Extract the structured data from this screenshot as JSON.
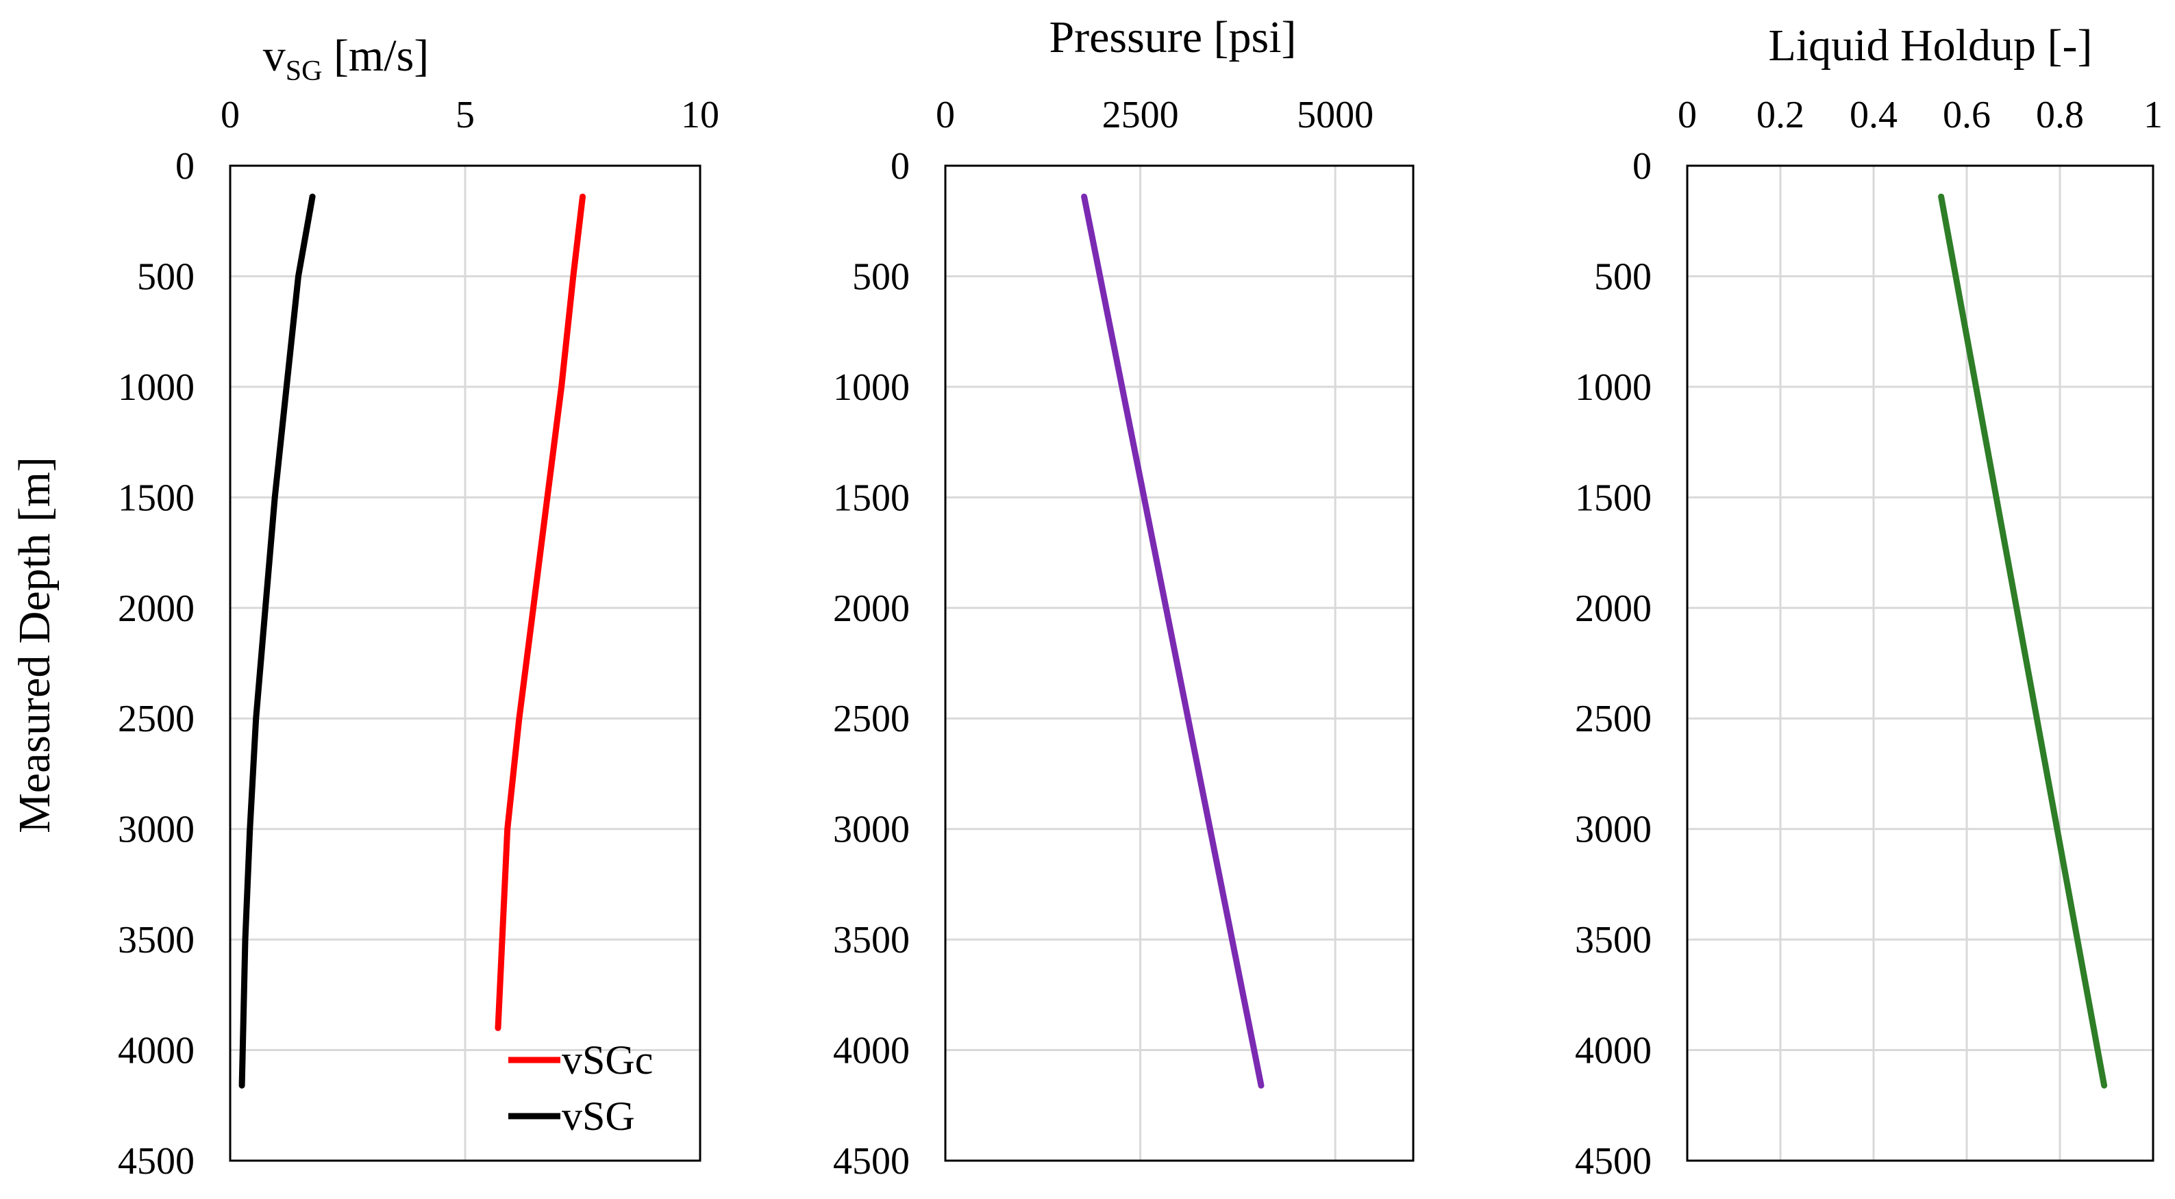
{
  "chart_data": [
    {
      "type": "line",
      "title": "",
      "xlabel_main": "v",
      "xlabel_sub": "SG",
      "xlabel_unit": " [m/s]",
      "ylabel": "Measured Depth [m]",
      "xlim": [
        0,
        10
      ],
      "ylim": [
        0,
        4500
      ],
      "y_inverted": true,
      "xticks": [
        "0",
        "5",
        "10"
      ],
      "yticks": [
        "0",
        "500",
        "1000",
        "1500",
        "2000",
        "2500",
        "3000",
        "3500",
        "4000",
        "4500"
      ],
      "grid": true,
      "legend_position": "bottom-right",
      "series": [
        {
          "name": "vSGc",
          "color": "#ff0000",
          "x": [
            7.5,
            7.3,
            7.05,
            6.75,
            6.45,
            6.15,
            5.9,
            5.7
          ],
          "y": [
            140,
            500,
            1000,
            1500,
            2000,
            2500,
            3000,
            3900
          ]
        },
        {
          "name": "vSG",
          "color": "#000000",
          "x": [
            1.75,
            1.45,
            1.2,
            0.95,
            0.75,
            0.55,
            0.42,
            0.32,
            0.25
          ],
          "y": [
            140,
            500,
            1000,
            1500,
            2000,
            2500,
            3000,
            3500,
            4160
          ]
        }
      ]
    },
    {
      "type": "line",
      "title": "",
      "xlabel": "Pressure [psi]",
      "ylabel": "",
      "xlim": [
        0,
        6000
      ],
      "ylim": [
        0,
        4500
      ],
      "y_inverted": true,
      "xticks": [
        "0",
        "2500",
        "5000"
      ],
      "yticks": [
        "0",
        "500",
        "1000",
        "1500",
        "2000",
        "2500",
        "3000",
        "3500",
        "4000",
        "4500"
      ],
      "grid": true,
      "series": [
        {
          "name": "Pressure",
          "color": "#7b2ab2",
          "x": [
            1780,
            4050
          ],
          "y": [
            140,
            4160
          ]
        }
      ]
    },
    {
      "type": "line",
      "title": "",
      "xlabel": "Liquid Holdup [-]",
      "ylabel": "",
      "xlim": [
        0,
        1
      ],
      "ylim": [
        0,
        4500
      ],
      "y_inverted": true,
      "xticks": [
        "0",
        "0.2",
        "0.4",
        "0.6",
        "0.8",
        "1"
      ],
      "yticks": [
        "0",
        "500",
        "1000",
        "1500",
        "2000",
        "2500",
        "3000",
        "3500",
        "4000",
        "4500"
      ],
      "grid": true,
      "series": [
        {
          "name": "Liquid Holdup",
          "color": "#2e7d27",
          "x": [
            0.545,
            0.895
          ],
          "y": [
            140,
            4160
          ]
        }
      ]
    }
  ]
}
